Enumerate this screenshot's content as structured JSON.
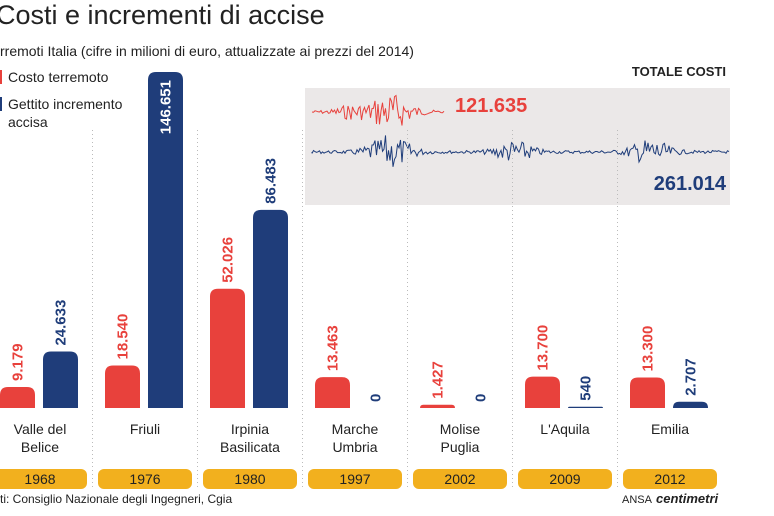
{
  "chart_data": {
    "type": "bar",
    "title": "Costi e incrementi di accise",
    "subtitle": "rremoti Italia (cifre in milioni di euro, attualizzate ai prezzi del 2014)",
    "categories": [
      "Valle del Belice",
      "Friuli",
      "Irpinia Basilicata",
      "Marche Umbria",
      "Molise Puglia",
      "L'Aquila",
      "Emilia"
    ],
    "years": [
      "1968",
      "1976",
      "1980",
      "1997",
      "2002",
      "2009",
      "2012"
    ],
    "series": [
      {
        "name": "Costo terremoto",
        "color": "#e8413c",
        "values": [
          9179,
          18540,
          52026,
          13463,
          1427,
          13700,
          13300
        ],
        "value_labels": [
          "9.179",
          "18.540",
          "52.026",
          "13.463",
          "1.427",
          "13.700",
          "13.300"
        ]
      },
      {
        "name": "Gettito incremento accisa",
        "color": "#1f3d7a",
        "values": [
          24633,
          146651,
          86483,
          0,
          0,
          540,
          2707
        ],
        "value_labels": [
          "24.633",
          "146.651",
          "86.483",
          "0",
          "0",
          "540",
          "2.707"
        ]
      }
    ],
    "totals": {
      "title": "TOTALE COSTI",
      "values": [
        121635,
        261014
      ],
      "value_labels": [
        "121.635",
        "261.014"
      ]
    },
    "source": "ti: Consiglio Nazionale degli Ingegneri, Cgia",
    "credit": "ANSA",
    "brand": "centimetri"
  }
}
